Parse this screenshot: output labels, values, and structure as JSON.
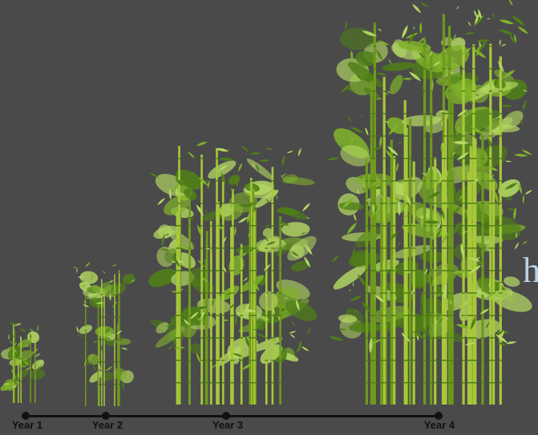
{
  "stages": [
    {
      "label": "Year 1",
      "plant": "bamboo-clump-year-1"
    },
    {
      "label": "Year 2",
      "plant": "bamboo-clump-year-2"
    },
    {
      "label": "Year 3",
      "plant": "bamboo-clump-year-3"
    },
    {
      "label": "Year 4",
      "plant": "bamboo-clump-year-4"
    }
  ],
  "edge_text": "h",
  "colors": {
    "background": "#4a4a4a",
    "timeline": "#111111",
    "stalk": "#6f9a1c",
    "stalk_light": "#a8c83a",
    "leaf_dark": "#4f7f17",
    "leaf_mid": "#7fb12a",
    "leaf_light": "#b3d763",
    "edge_text": "#b9d3e6"
  }
}
